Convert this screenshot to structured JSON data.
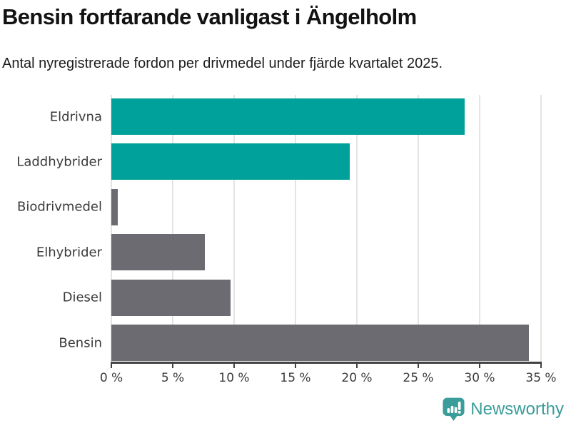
{
  "header": {
    "title": "Bensin fortfarande vanligast i Ängelholm",
    "subtitle": "Antal nyregistrerade fordon per drivmedel under fjärde kvartalet 2025."
  },
  "chart_data": {
    "type": "bar",
    "orientation": "horizontal",
    "title": "Bensin fortfarande vanligast i Ängelholm",
    "subtitle": "Antal nyregistrerade fordon per drivmedel under fjärde kvartalet 2025.",
    "categories": [
      "Eldrivna",
      "Laddhybrider",
      "Biodrivmedel",
      "Elhybrider",
      "Diesel",
      "Bensin"
    ],
    "values": [
      28.8,
      19.4,
      0.5,
      7.6,
      9.7,
      34.0
    ],
    "unit": "%",
    "bar_colors": [
      "#00a19a",
      "#00a19a",
      "#6c6b71",
      "#6c6b71",
      "#6c6b71",
      "#6c6b71"
    ],
    "xlim": [
      0,
      35
    ],
    "x_tick_values": [
      0,
      5,
      10,
      15,
      20,
      25,
      30,
      35
    ],
    "x_tick_labels": [
      "0 %",
      "5 %",
      "10 %",
      "15 %",
      "20 %",
      "25 %",
      "30 %",
      "35 %"
    ],
    "grid": true,
    "legend": "none"
  },
  "colors": {
    "highlight": "#00a19a",
    "neutral": "#6c6b71",
    "gridline": "#e4e4e4",
    "axis": "#424242",
    "text": "#3a3a3a",
    "logo_teal": "#3a9d99"
  },
  "footer": {
    "brand": "Newsworthy",
    "logo_icon": "newsworthy-chart-bubble-icon"
  }
}
